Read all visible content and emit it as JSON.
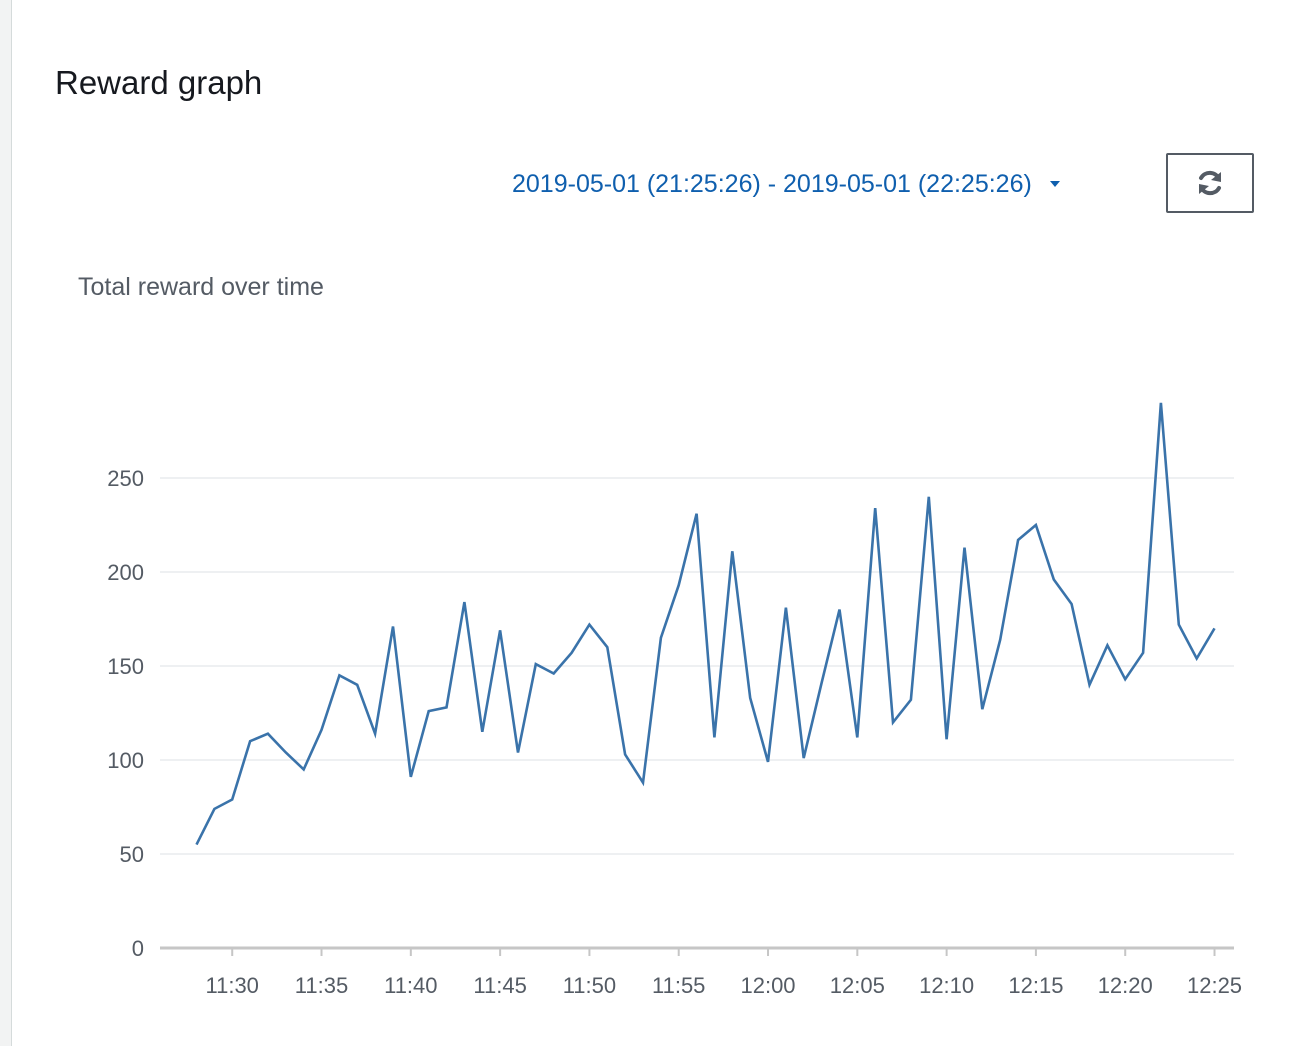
{
  "panel": {
    "title": "Reward graph"
  },
  "toolbar": {
    "time_range": "2019-05-01 (21:25:26) - 2019-05-01 (22:25:26)",
    "refresh_icon": "refresh-icon"
  },
  "colors": {
    "accent": "#0f5fae",
    "series_line": "#3a73aa",
    "gridline": "#e9ebed",
    "axis": "#c6c6c6"
  },
  "chart_data": {
    "type": "line",
    "title": "Total reward over time",
    "xlabel": "",
    "ylabel": "",
    "x_ticks": [
      "11:30",
      "11:35",
      "11:40",
      "11:45",
      "11:50",
      "11:55",
      "12:00",
      "12:05",
      "12:10",
      "12:15",
      "12:20",
      "12:25"
    ],
    "y_ticks": [
      0,
      50,
      100,
      150,
      200,
      250
    ],
    "xlim": [
      "11:26",
      "12:25"
    ],
    "ylim": [
      0,
      290
    ],
    "grid": true,
    "series": [
      {
        "x": [
          "11:28",
          "11:29",
          "11:30",
          "11:31",
          "11:32",
          "11:33",
          "11:34",
          "11:35",
          "11:36",
          "11:37",
          "11:38",
          "11:39",
          "11:40",
          "11:41",
          "11:42",
          "11:43",
          "11:44",
          "11:45",
          "11:46",
          "11:47",
          "11:48",
          "11:49",
          "11:50",
          "11:51",
          "11:52",
          "11:53",
          "11:54",
          "11:55",
          "11:56",
          "11:57",
          "11:58",
          "11:59",
          "12:00",
          "12:01",
          "12:02",
          "12:03",
          "12:04",
          "12:05",
          "12:06",
          "12:07",
          "12:08",
          "12:09",
          "12:10",
          "12:11",
          "12:12",
          "12:13",
          "12:14",
          "12:15",
          "12:16",
          "12:17",
          "12:18",
          "12:19",
          "12:20",
          "12:21",
          "12:22",
          "12:23",
          "12:24",
          "12:25"
        ],
        "values": [
          55,
          74,
          79,
          110,
          114,
          104,
          95,
          116,
          145,
          140,
          114,
          171,
          91,
          126,
          128,
          184,
          115,
          169,
          104,
          151,
          146,
          157,
          172,
          160,
          103,
          88,
          165,
          193,
          231,
          112,
          211,
          133,
          99,
          181,
          101,
          141,
          180,
          112,
          234,
          120,
          132,
          240,
          111,
          213,
          127,
          164,
          217,
          225,
          196,
          183,
          140,
          161,
          143,
          157,
          290,
          172,
          154,
          170
        ]
      }
    ]
  }
}
